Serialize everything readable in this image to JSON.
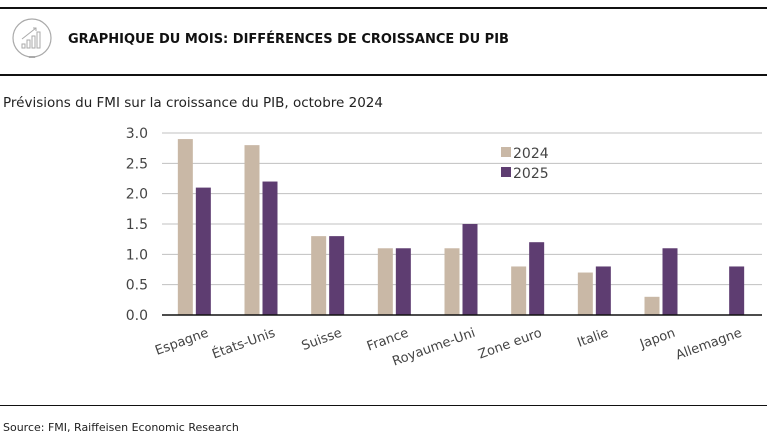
{
  "header": {
    "title": "GRAPHIQUE DU MOIS: DIFFÉRENCES DE CROISSANCE DU PIB",
    "icon": "bar-chart-growth-icon"
  },
  "footer": {
    "source": "Source: FMI, Raiffeisen Economic Research"
  },
  "colors": {
    "2024": "#c9b8a6",
    "2025": "#5e3d71",
    "grid": "#c0c0c0",
    "axis": "#111111"
  },
  "chart_data": {
    "type": "bar",
    "title": "Prévisions du FMI sur la croissance du PIB, octobre 2024",
    "xlabel": "",
    "ylabel": "",
    "ylim": [
      0,
      3.0
    ],
    "yticks": [
      "0.0",
      "0.5",
      "1.0",
      "1.5",
      "2.0",
      "2.5",
      "3.0"
    ],
    "grid": true,
    "legend_position": "top-right",
    "categories": [
      "Espagne",
      "États-Unis",
      "Suisse",
      "France",
      "Royaume-Uni",
      "Zone euro",
      "Italie",
      "Japon",
      "Allemagne"
    ],
    "series": [
      {
        "name": "2024",
        "values": [
          2.9,
          2.8,
          1.3,
          1.1,
          1.1,
          0.8,
          0.7,
          0.3,
          0.0
        ]
      },
      {
        "name": "2025",
        "values": [
          2.1,
          2.2,
          1.3,
          1.1,
          1.5,
          1.2,
          0.8,
          1.1,
          0.8
        ]
      }
    ]
  }
}
